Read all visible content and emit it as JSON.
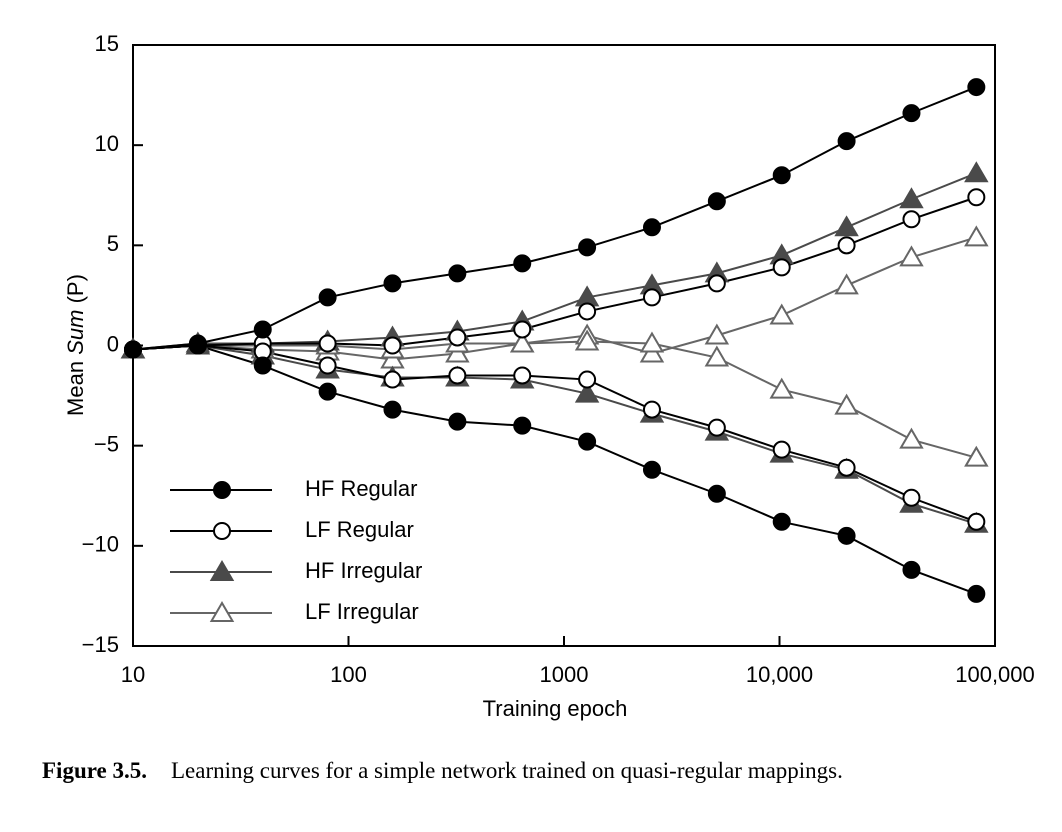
{
  "chart_data": {
    "type": "line",
    "xlabel": "Training epoch",
    "ylabel": {
      "prefix": "Mean",
      "italic": "Sum",
      "suffix": "(P)"
    },
    "caption": {
      "label": "Figure 3.5.",
      "text": "Learning curves for a simple network trained on quasi-regular mappings."
    },
    "x": [
      10,
      20,
      40,
      80,
      160,
      320,
      640,
      1280,
      2560,
      5120,
      10240,
      20480,
      40960,
      81920
    ],
    "xscale": "log",
    "xlim": [
      10,
      100000
    ],
    "xticks": [
      10,
      100,
      1000,
      {
        "value": 10000,
        "label": "10,000"
      },
      {
        "value": 100000,
        "label": "100,000"
      }
    ],
    "ylim": [
      -15,
      15
    ],
    "yticks": [
      15,
      10,
      5,
      0,
      {
        "value": -5,
        "label": "−5"
      },
      {
        "value": -10,
        "label": "−10"
      },
      {
        "value": -15,
        "label": "−15"
      }
    ],
    "legend": "lower left",
    "series": [
      {
        "name": "HF Regular",
        "color": "#000000",
        "marker": "circle",
        "filled": true,
        "values_upper": [
          -0.2,
          0.1,
          0.8,
          2.4,
          3.1,
          3.6,
          4.1,
          4.9,
          5.9,
          7.2,
          8.5,
          10.2,
          11.6,
          12.9
        ],
        "values_lower": [
          -0.2,
          0,
          -1.0,
          -2.3,
          -3.2,
          -3.8,
          -4.0,
          -4.8,
          -6.2,
          -7.4,
          -8.8,
          -9.5,
          -11.2,
          -12.4
        ]
      },
      {
        "name": "LF Regular",
        "color": "#000000",
        "marker": "circle",
        "filled": false,
        "values_upper": [
          -0.2,
          0,
          0.1,
          0.1,
          0,
          0.4,
          0.8,
          1.7,
          2.4,
          3.1,
          3.9,
          5.0,
          6.3,
          7.4
        ],
        "values_lower": [
          -0.2,
          0,
          -0.3,
          -1.0,
          -1.7,
          -1.5,
          -1.5,
          -1.7,
          -3.2,
          -4.1,
          -5.2,
          -6.1,
          -7.6,
          -8.8
        ]
      },
      {
        "name": "HF Irregular",
        "color": "#4a4a4a",
        "marker": "triangle",
        "filled": true,
        "values_upper": [
          -0.2,
          0.1,
          0.1,
          0.2,
          0.4,
          0.7,
          1.2,
          2.4,
          3.0,
          3.6,
          4.5,
          5.9,
          7.3,
          8.6
        ],
        "values_lower": [
          -0.2,
          0,
          -0.5,
          -1.2,
          -1.6,
          -1.6,
          -1.7,
          -2.4,
          -3.4,
          -4.3,
          -5.4,
          -6.2,
          -7.9,
          -8.9
        ]
      },
      {
        "name": "LF Irregular",
        "color": "#666666",
        "marker": "triangle",
        "filled": false,
        "values_upper": [
          -0.2,
          0,
          -0.2,
          -0.3,
          -0.7,
          -0.4,
          0.1,
          0.5,
          -0.4,
          0.5,
          1.5,
          3.0,
          4.4,
          5.4
        ],
        "values_lower": [
          -0.2,
          0,
          0.0,
          0.0,
          -0.2,
          0.1,
          0.1,
          0.2,
          0.1,
          -0.6,
          -2.2,
          -3.0,
          -4.7,
          -5.6
        ]
      }
    ]
  }
}
